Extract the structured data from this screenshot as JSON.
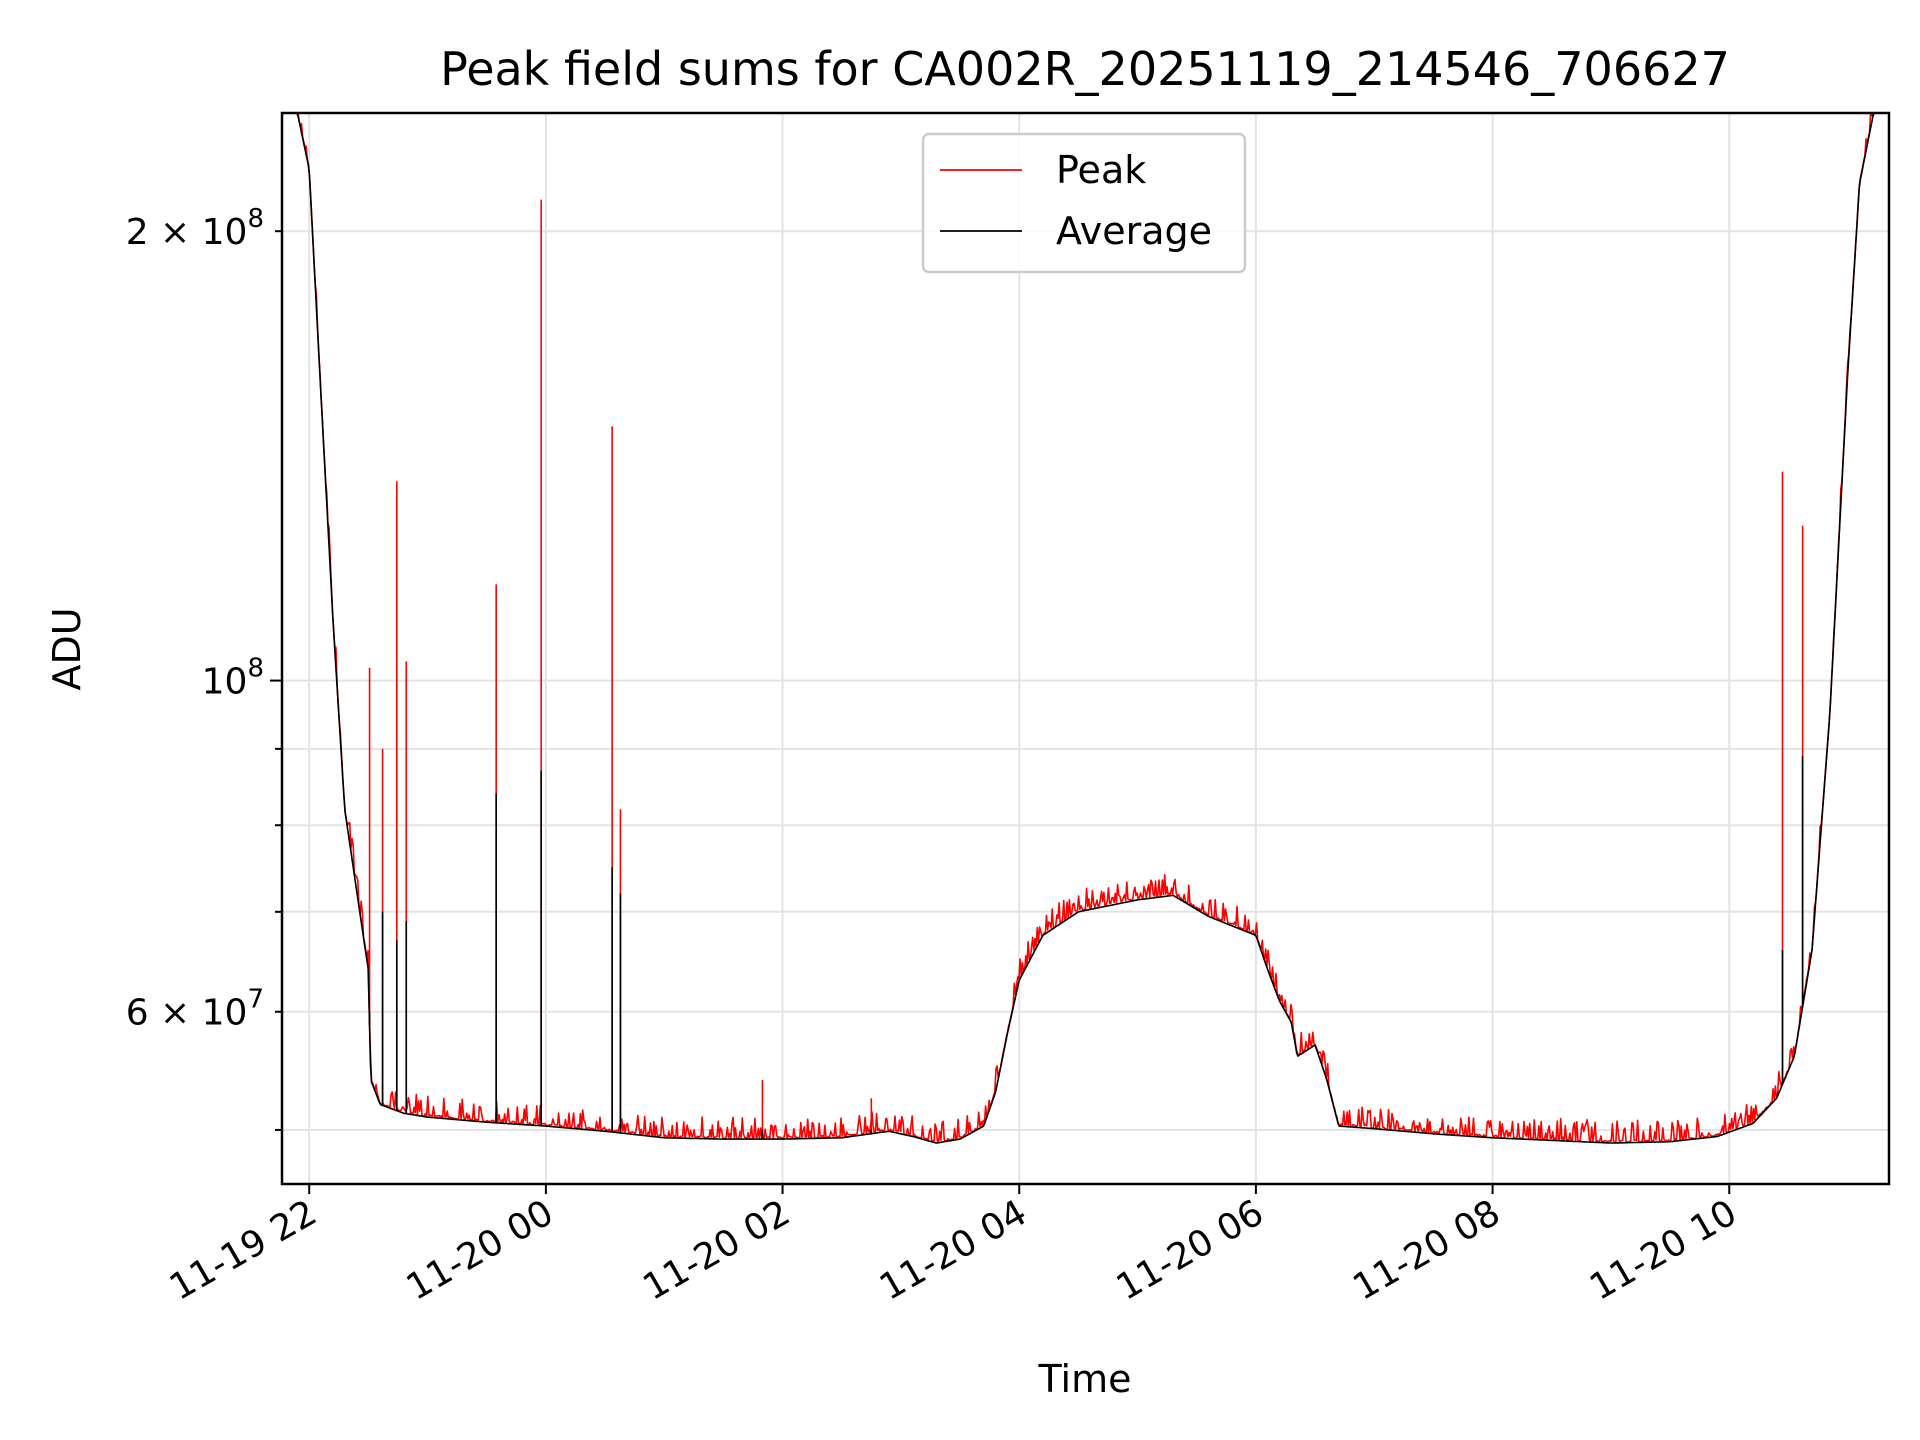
{
  "chart_data": {
    "type": "line",
    "title": "Peak field sums for CA002R_20251119_214546_706627",
    "xlabel": "Time",
    "ylabel": "ADU",
    "y_scale": "log",
    "ylim": [
      46000000,
      240000000
    ],
    "x_unit": "hours since 11-19 22:00",
    "xlim": [
      -0.23,
      13.35
    ],
    "x_ticks": [
      {
        "x": 0,
        "label": "11-19 22"
      },
      {
        "x": 2,
        "label": "11-20 00"
      },
      {
        "x": 4,
        "label": "11-20 02"
      },
      {
        "x": 6,
        "label": "11-20 04"
      },
      {
        "x": 8,
        "label": "11-20 06"
      },
      {
        "x": 10,
        "label": "11-20 08"
      },
      {
        "x": 12,
        "label": "11-20 10"
      }
    ],
    "y_ticks_major": [
      {
        "y": 100000000,
        "label": "10",
        "sup": "8"
      }
    ],
    "y_ticks_labeled_minor": [
      {
        "y": 200000000,
        "label": "2 × 10",
        "sup": "8"
      },
      {
        "y": 60000000,
        "label": "6 × 10",
        "sup": "7"
      }
    ],
    "y_ticks_minor_unlabeled": [
      50000000,
      70000000,
      80000000,
      90000000
    ],
    "grid": true,
    "legend": {
      "location": "upper center",
      "entries": [
        {
          "name": "Peak",
          "color": "#ff0000"
        },
        {
          "name": "Average",
          "color": "#000000"
        }
      ]
    },
    "series": [
      {
        "name": "Average",
        "color": "#000000",
        "points": [
          [
            -0.23,
            240000000
          ],
          [
            -0.1,
            240000000
          ],
          [
            0.0,
            220000000
          ],
          [
            0.1,
            155000000
          ],
          [
            0.2,
            110000000
          ],
          [
            0.3,
            82000000
          ],
          [
            0.45,
            68000000
          ],
          [
            0.5,
            64000000
          ],
          [
            0.52,
            54000000
          ],
          [
            0.6,
            52000000
          ],
          [
            0.8,
            51300000
          ],
          [
            1.0,
            51000000
          ],
          [
            1.5,
            50600000
          ],
          [
            2.0,
            50300000
          ],
          [
            2.5,
            49900000
          ],
          [
            3.0,
            49400000
          ],
          [
            3.5,
            49300000
          ],
          [
            4.0,
            49300000
          ],
          [
            4.5,
            49400000
          ],
          [
            4.9,
            49900000
          ],
          [
            5.1,
            49500000
          ],
          [
            5.3,
            49000000
          ],
          [
            5.5,
            49300000
          ],
          [
            5.7,
            50300000
          ],
          [
            5.8,
            53000000
          ],
          [
            5.9,
            58000000
          ],
          [
            6.0,
            63000000
          ],
          [
            6.2,
            67500000
          ],
          [
            6.5,
            70000000
          ],
          [
            7.0,
            71300000
          ],
          [
            7.3,
            71800000
          ],
          [
            7.6,
            69500000
          ],
          [
            8.0,
            67500000
          ],
          [
            8.1,
            64000000
          ],
          [
            8.2,
            61000000
          ],
          [
            8.3,
            59000000
          ],
          [
            8.35,
            56000000
          ],
          [
            8.5,
            57000000
          ],
          [
            8.6,
            54000000
          ],
          [
            8.7,
            50300000
          ],
          [
            9.0,
            50100000
          ],
          [
            9.5,
            49700000
          ],
          [
            10.0,
            49400000
          ],
          [
            10.5,
            49200000
          ],
          [
            11.0,
            49000000
          ],
          [
            11.5,
            49100000
          ],
          [
            11.9,
            49500000
          ],
          [
            12.2,
            50500000
          ],
          [
            12.4,
            52500000
          ],
          [
            12.55,
            56000000
          ],
          [
            12.7,
            66000000
          ],
          [
            12.85,
            95000000
          ],
          [
            13.0,
            160000000
          ],
          [
            13.1,
            215000000
          ],
          [
            13.22,
            240000000
          ],
          [
            13.35,
            240000000
          ]
        ]
      },
      {
        "name": "Peak",
        "color": "#ff0000",
        "spikes": [
          {
            "x": 0.51,
            "y": 102000000,
            "avg_y": 60000000
          },
          {
            "x": 0.62,
            "y": 90000000,
            "avg_y": 70000000
          },
          {
            "x": 0.74,
            "y": 136000000,
            "avg_y": 67000000
          },
          {
            "x": 0.82,
            "y": 103000000,
            "avg_y": 69000000
          },
          {
            "x": 1.58,
            "y": 116000000,
            "avg_y": 84000000
          },
          {
            "x": 1.96,
            "y": 210000000,
            "avg_y": 87000000
          },
          {
            "x": 2.56,
            "y": 148000000,
            "avg_y": 75000000
          },
          {
            "x": 2.63,
            "y": 82000000,
            "avg_y": 72000000
          },
          {
            "x": 3.83,
            "y": 54000000,
            "avg_y": 50000000
          },
          {
            "x": 4.75,
            "y": 52500000,
            "avg_y": 50000000
          },
          {
            "x": 12.45,
            "y": 138000000,
            "avg_y": 66000000
          },
          {
            "x": 12.62,
            "y": 127000000,
            "avg_y": 89000000
          }
        ]
      }
    ]
  }
}
